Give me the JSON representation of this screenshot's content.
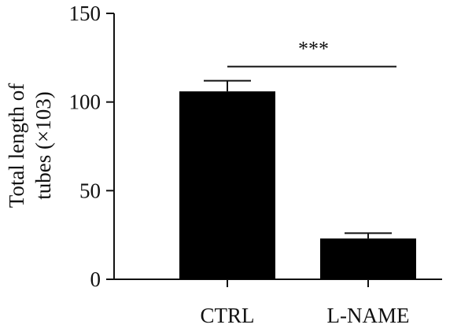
{
  "chart_data": {
    "type": "bar",
    "categories": [
      "CTRL",
      "L-NAME"
    ],
    "values": [
      106,
      23
    ],
    "errors": [
      6,
      3
    ],
    "ylabel_lines": [
      "Total length of",
      "tubes (×103)"
    ],
    "xlabel": "",
    "ylim": [
      0,
      150
    ],
    "yticks": [
      0,
      50,
      100,
      150
    ],
    "ytick_labels": [
      "0",
      "50",
      "100",
      "150"
    ],
    "grid": false,
    "bar_color": "#000000",
    "significance": {
      "text": "***",
      "from": "CTRL",
      "to": "L-NAME",
      "y": 120
    }
  }
}
